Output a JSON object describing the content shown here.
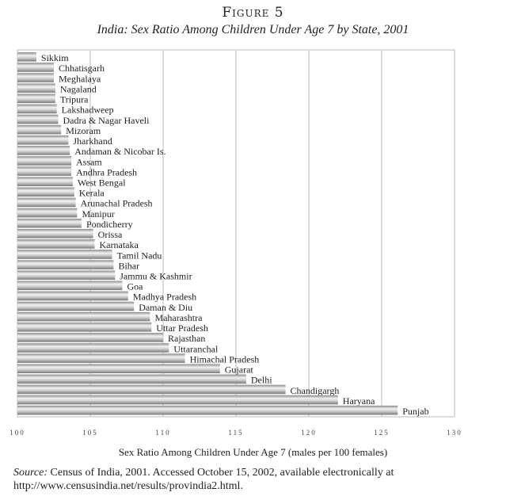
{
  "figure_label": "Figure 5",
  "source_prefix": "Source:",
  "source_text": " Census of India, 2001. Accessed October 15, 2002, available electronically at http://www.censusindia.net/results/provindia2.html.",
  "chart_data": {
    "type": "bar",
    "orientation": "horizontal",
    "title": "India: Sex Ratio Among Children Under Age 7 by State, 2001",
    "xlabel": "Sex Ratio Among Children Under Age 7 (males per 100 females)",
    "ylabel": "",
    "xlim": [
      100,
      130
    ],
    "xticks": [
      "100",
      "105",
      "110",
      "115",
      "120",
      "125",
      "130"
    ],
    "grid": true,
    "categories": [
      "Sikkim",
      "Chhatisgarh",
      "Meghalaya",
      "Nagaland",
      "Tripura",
      "Lakshadweep",
      "Dadra & Nagar Haveli",
      "Mizoram",
      "Jharkhand",
      "Andaman & Nicobar Is.",
      "Assam",
      "Andhra Pradesh",
      "West Bengal",
      "Kerala",
      "Arunachal Pradesh",
      "Manipur",
      "Pondicherry",
      "Orissa",
      "Karnataka",
      "Tamil Nadu",
      "Bihar",
      "Jammu & Kashmir",
      "Goa",
      "Madhya Pradesh",
      "Daman & Diu",
      "Maharashtra",
      "Uttar Pradesh",
      "Rajasthan",
      "Uttaranchal",
      "Himachal Pradesh",
      "Gujarat",
      "Delhi",
      "Chandigargh",
      "Haryana",
      "Punjab"
    ],
    "values": [
      101.3,
      102.5,
      102.5,
      102.6,
      102.6,
      102.7,
      102.8,
      103.0,
      103.5,
      103.6,
      103.7,
      103.7,
      103.8,
      103.9,
      104.0,
      104.1,
      104.4,
      105.2,
      105.3,
      106.5,
      106.6,
      106.7,
      107.2,
      107.6,
      108.0,
      109.1,
      109.2,
      110.0,
      110.4,
      111.5,
      113.9,
      115.7,
      118.4,
      122.0,
      126.1
    ]
  }
}
